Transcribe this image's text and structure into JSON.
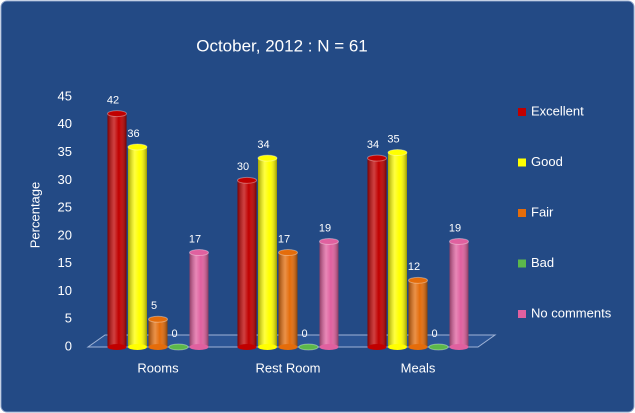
{
  "chart_data": {
    "type": "bar3d",
    "title": "October, 2012  :  N = 61",
    "y_label": "Percentage",
    "categories": [
      "Rooms",
      "Rest Room",
      "Meals"
    ],
    "series": [
      {
        "name": "Excellent",
        "color": "#c00000",
        "values": [
          42,
          30,
          34
        ]
      },
      {
        "name": "Good",
        "color": "#ffff00",
        "values": [
          36,
          34,
          35
        ]
      },
      {
        "name": "Fair",
        "color": "#e46c0a",
        "values": [
          5,
          17,
          12
        ]
      },
      {
        "name": "Bad",
        "color": "#5cb84a",
        "values": [
          0,
          0,
          0
        ]
      },
      {
        "name": "No comments",
        "color": "#e0609f",
        "values": [
          17,
          19,
          19
        ]
      }
    ],
    "ylim": [
      0,
      45
    ],
    "yticks": [
      0,
      5,
      10,
      15,
      20,
      25,
      30,
      35,
      40,
      45
    ],
    "legend": "right"
  }
}
